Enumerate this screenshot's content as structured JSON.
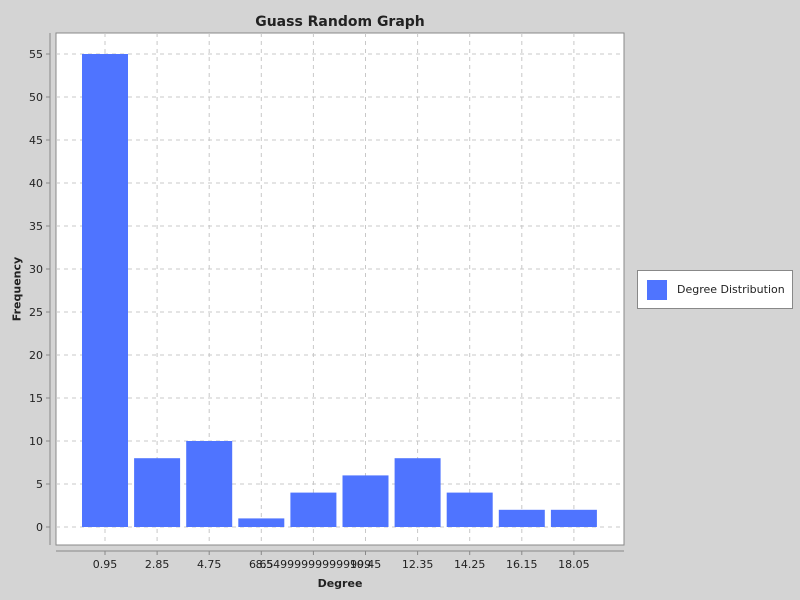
{
  "chart_data": {
    "type": "bar",
    "title": "Guass Random Graph",
    "xlabel": "Degree",
    "ylabel": "Frequency",
    "categories": [
      "0.95",
      "2.85",
      "4.75",
      "6.65",
      "8.549999999999999",
      "10.45",
      "12.35",
      "14.25",
      "16.15",
      "18.05"
    ],
    "series": [
      {
        "name": "Degree Distribution",
        "values": [
          55,
          8,
          10,
          1,
          4,
          6,
          8,
          4,
          2,
          2
        ]
      }
    ],
    "ylim": [
      0,
      57.5
    ],
    "yticks": [
      0,
      5,
      10,
      15,
      20,
      25,
      30,
      35,
      40,
      45,
      50,
      55
    ],
    "grid": true,
    "legend_position": "right",
    "bar_color": "#4f74ff",
    "background": "#d4d4d4",
    "plot_background": "#ffffff"
  }
}
